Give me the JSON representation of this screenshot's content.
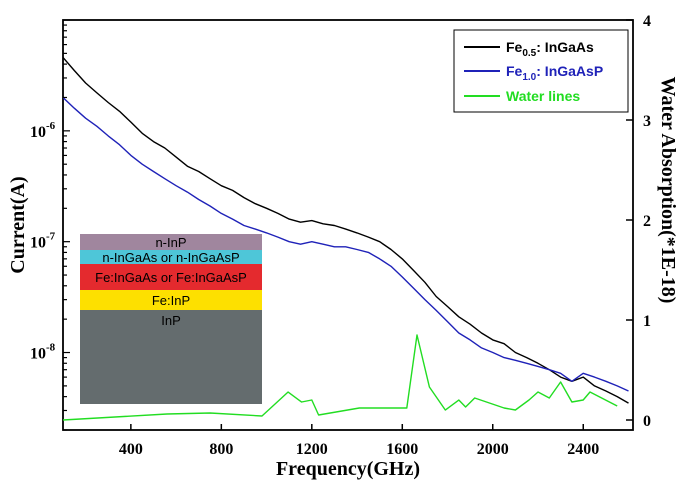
{
  "chart_data": {
    "type": "line",
    "xlabel": "Frequency(GHz)",
    "ylabel_left": "Current(A)",
    "ylabel_right": "Water Absorption(*1E-18)",
    "xlim": [
      100,
      2620
    ],
    "x_ticks": [
      400,
      800,
      1200,
      1600,
      2000,
      2400
    ],
    "x_tick_labels": [
      "400",
      "800",
      "1200",
      "1600",
      "2000",
      "2400"
    ],
    "ylim_left": [
      2e-09,
      1e-05
    ],
    "y_left_scale": "log",
    "y_left_ticks": [
      1e-06,
      1e-07,
      1e-08
    ],
    "y_left_tick_labels": [
      {
        "base": "10",
        "exp": "-6"
      },
      {
        "base": "10",
        "exp": "-7"
      },
      {
        "base": "10",
        "exp": "-8"
      }
    ],
    "ylim_right": [
      -0.1,
      4
    ],
    "y_right_ticks": [
      0,
      1,
      2,
      3,
      4
    ],
    "y_right_tick_labels": [
      "0",
      "1",
      "2",
      "3",
      "4"
    ],
    "legend_position": "top-right",
    "legend": [
      {
        "main": "Fe",
        "sub": "0.5",
        "tail": ": InGaAs",
        "color": "#000000"
      },
      {
        "main": "Fe",
        "sub": "1.0",
        "tail": ": InGaAsP",
        "color": "#1f22b8"
      },
      {
        "main": "Water lines",
        "sub": "",
        "tail": "",
        "color": "#22dd22"
      }
    ],
    "series": [
      {
        "axis": "left",
        "color": "#000000",
        "x": [
          100,
          150,
          200,
          250,
          300,
          350,
          400,
          450,
          500,
          550,
          600,
          650,
          700,
          750,
          800,
          850,
          900,
          950,
          1000,
          1050,
          1100,
          1150,
          1200,
          1250,
          1300,
          1350,
          1400,
          1450,
          1500,
          1550,
          1600,
          1650,
          1700,
          1750,
          1800,
          1850,
          1900,
          1950,
          2000,
          2050,
          2100,
          2150,
          2200,
          2250,
          2300,
          2350,
          2400,
          2450,
          2500,
          2550,
          2600
        ],
        "y": [
          4.6e-06,
          3.5e-06,
          2.7e-06,
          2.2e-06,
          1.8e-06,
          1.5e-06,
          1.2e-06,
          9.5e-07,
          8e-07,
          7e-07,
          5.8e-07,
          4.8e-07,
          4.3e-07,
          3.7e-07,
          3.2e-07,
          2.9e-07,
          2.5e-07,
          2.2e-07,
          2e-07,
          1.8e-07,
          1.6e-07,
          1.5e-07,
          1.55e-07,
          1.45e-07,
          1.4e-07,
          1.3e-07,
          1.2e-07,
          1.1e-07,
          1e-07,
          8.5e-08,
          7e-08,
          5.5e-08,
          4.3e-08,
          3.2e-08,
          2.6e-08,
          2.1e-08,
          1.8e-08,
          1.5e-08,
          1.3e-08,
          1.2e-08,
          1e-08,
          9e-09,
          8e-09,
          7e-09,
          6e-09,
          5.5e-09,
          6e-09,
          5e-09,
          4.5e-09,
          4e-09,
          3.5e-09
        ]
      },
      {
        "axis": "left",
        "color": "#1f22b8",
        "x": [
          100,
          150,
          200,
          250,
          300,
          350,
          400,
          450,
          500,
          550,
          600,
          650,
          700,
          750,
          800,
          850,
          900,
          950,
          1000,
          1050,
          1100,
          1150,
          1200,
          1250,
          1300,
          1350,
          1400,
          1450,
          1500,
          1550,
          1600,
          1650,
          1700,
          1750,
          1800,
          1850,
          1900,
          1950,
          2000,
          2050,
          2100,
          2150,
          2200,
          2250,
          2300,
          2350,
          2400,
          2450,
          2500,
          2550,
          2600
        ],
        "y": [
          2e-06,
          1.6e-06,
          1.3e-06,
          1.1e-06,
          9e-07,
          7.5e-07,
          6e-07,
          5e-07,
          4.3e-07,
          3.7e-07,
          3.2e-07,
          2.8e-07,
          2.4e-07,
          2.1e-07,
          1.8e-07,
          1.6e-07,
          1.4e-07,
          1.3e-07,
          1.2e-07,
          1.1e-07,
          1e-07,
          9.5e-08,
          1e-07,
          9.5e-08,
          9e-08,
          9e-08,
          8.5e-08,
          8e-08,
          7e-08,
          6e-08,
          4.8e-08,
          3.8e-08,
          3e-08,
          2.4e-08,
          1.9e-08,
          1.5e-08,
          1.3e-08,
          1.1e-08,
          1e-08,
          9e-09,
          8.5e-09,
          8e-09,
          7.5e-09,
          7e-09,
          6.5e-09,
          5.5e-09,
          6.5e-09,
          6e-09,
          5.5e-09,
          5e-09,
          4.5e-09
        ]
      },
      {
        "axis": "right",
        "color": "#22dd22",
        "x": [
          100,
          560,
          750,
          980,
          1095,
          1155,
          1200,
          1230,
          1410,
          1620,
          1665,
          1720,
          1790,
          1850,
          1880,
          1920,
          2050,
          2100,
          2160,
          2200,
          2250,
          2300,
          2350,
          2400,
          2430,
          2550
        ],
        "y": [
          0.0,
          0.06,
          0.07,
          0.04,
          0.28,
          0.18,
          0.2,
          0.05,
          0.12,
          0.12,
          0.85,
          0.33,
          0.1,
          0.2,
          0.13,
          0.22,
          0.12,
          0.1,
          0.2,
          0.28,
          0.22,
          0.38,
          0.18,
          0.2,
          0.28,
          0.14
        ]
      }
    ],
    "inset": {
      "layers": [
        {
          "label": "n-InP",
          "color": "#a0869e"
        },
        {
          "label": "n-InGaAs or n-InGaAsP",
          "color": "#4ec6d8"
        },
        {
          "label": "Fe:InGaAs or Fe:InGaAsP",
          "color": "#e42a2e"
        },
        {
          "label": "Fe:InP",
          "color": "#fde000"
        },
        {
          "label": "InP",
          "color": "#646c6e"
        }
      ]
    }
  }
}
